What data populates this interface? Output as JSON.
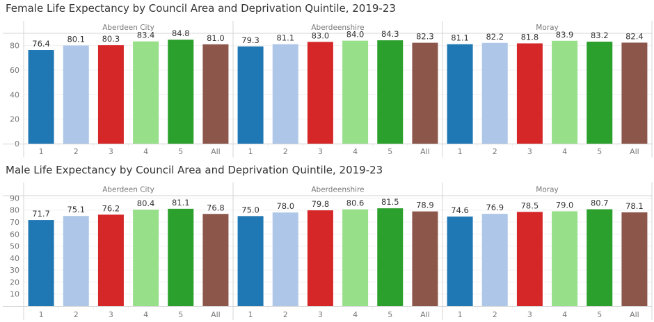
{
  "chart_data": [
    {
      "type": "bar",
      "title": "Female Life Expectancy by Council Area and Deprivation Quintile, 2019-23",
      "xlabel": "",
      "ylabel": "",
      "ylim": [
        0,
        90
      ],
      "yticks": [
        0,
        20,
        40,
        60,
        80
      ],
      "grid": true,
      "legend": "none",
      "categories": [
        "1",
        "2",
        "3",
        "4",
        "5",
        "All"
      ],
      "panels": [
        {
          "name": "Aberdeen City",
          "values": [
            76.4,
            80.1,
            80.3,
            83.4,
            84.8,
            81.0
          ],
          "labels": [
            "76.4",
            "80.1",
            "80.3",
            "83.4",
            "84.8",
            "81.0"
          ]
        },
        {
          "name": "Aberdeenshire",
          "values": [
            79.3,
            81.1,
            83.0,
            84.0,
            84.3,
            82.3
          ],
          "labels": [
            "79.3",
            "81.1",
            "83.0",
            "84.0",
            "84.3",
            "82.3"
          ]
        },
        {
          "name": "Moray",
          "values": [
            81.1,
            82.2,
            81.8,
            83.9,
            83.2,
            82.4
          ],
          "labels": [
            "81.1",
            "82.2",
            "81.8",
            "83.9",
            "83.2",
            "82.4"
          ]
        }
      ]
    },
    {
      "type": "bar",
      "title": "Male Life Expectancy by Council Area and Deprivation Quintile, 2019-23",
      "xlabel": "",
      "ylabel": "",
      "ylim": [
        0,
        92
      ],
      "yticks": [
        10,
        20,
        30,
        40,
        50,
        60,
        70,
        80,
        90
      ],
      "grid": true,
      "legend": "none",
      "categories": [
        "1",
        "2",
        "3",
        "4",
        "5",
        "All"
      ],
      "panels": [
        {
          "name": "Aberdeen City",
          "values": [
            71.7,
            75.1,
            76.2,
            80.4,
            81.1,
            76.8
          ],
          "labels": [
            "71.7",
            "75.1",
            "76.2",
            "80.4",
            "81.1",
            "76.8"
          ]
        },
        {
          "name": "Aberdeenshire",
          "values": [
            75.0,
            78.0,
            79.8,
            80.6,
            81.5,
            78.9
          ],
          "labels": [
            "75.0",
            "78.0",
            "79.8",
            "80.6",
            "81.5",
            "78.9"
          ]
        },
        {
          "name": "Moray",
          "values": [
            74.6,
            76.9,
            78.5,
            79.0,
            80.7,
            78.1
          ],
          "labels": [
            "74.6",
            "76.9",
            "78.5",
            "79.0",
            "80.7",
            "78.1"
          ]
        }
      ]
    }
  ],
  "colors": {
    "categories": [
      "#1f77b4",
      "#aec7e8",
      "#d62728",
      "#98df8a",
      "#2ca02c",
      "#8c564b"
    ],
    "grid": "#f0f0f0",
    "axis": "#d4d4d4",
    "text": "#333333",
    "muted": "#777777"
  }
}
